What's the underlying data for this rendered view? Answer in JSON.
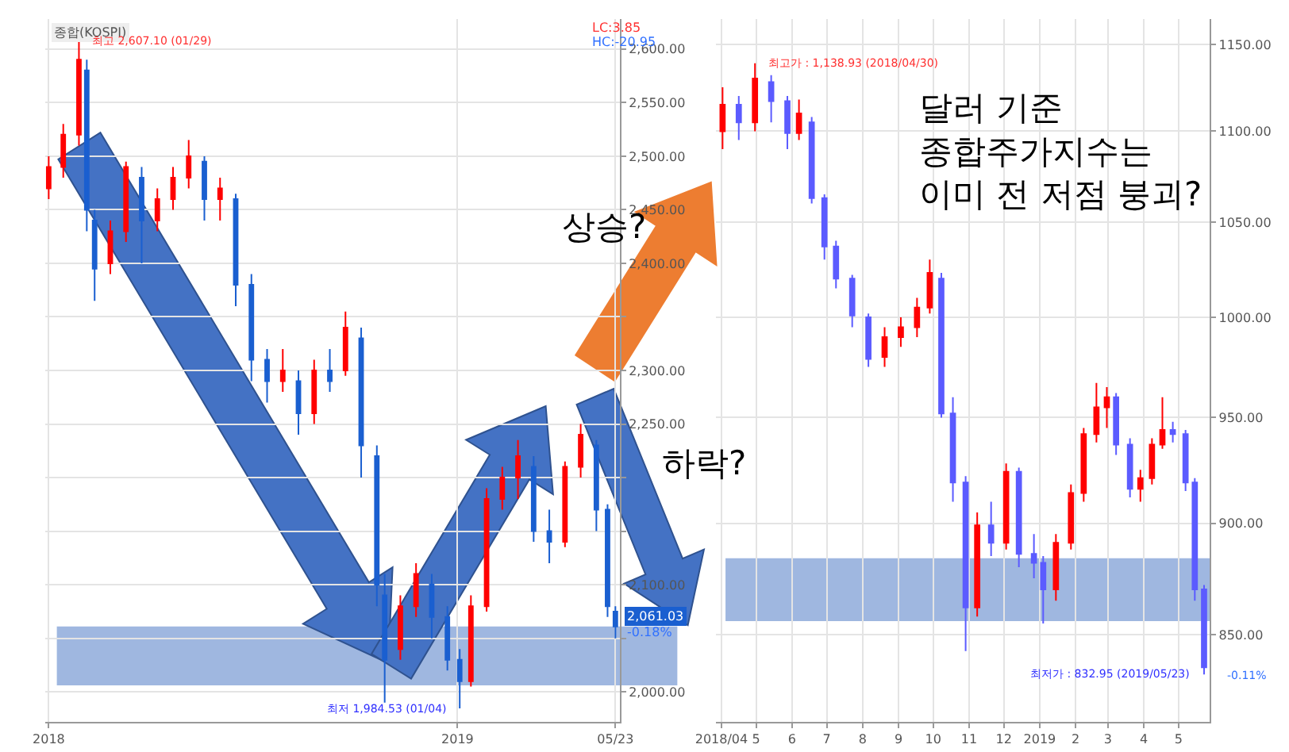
{
  "chart_data": [
    {
      "type": "candlestick",
      "title": "종합(KOSPI)",
      "log": false,
      "grid": true,
      "xlim": [
        "2017-12-30",
        "2019-05-27"
      ],
      "xticks": [
        {
          "value": "2018-01-02",
          "label": "2018"
        },
        {
          "value": "2019-01-02",
          "label": "2019"
        },
        {
          "value": "2019-05-23",
          "label": "05/23"
        }
      ],
      "ylim": [
        1972,
        2628
      ],
      "yticks": [
        {
          "value": 2000,
          "label": "2,000.00"
        },
        {
          "value": 2050,
          "label": null
        },
        {
          "value": 2100,
          "label": "2,100.00"
        },
        {
          "value": 2150,
          "label": null
        },
        {
          "value": 2200,
          "label": null
        },
        {
          "value": 2250,
          "label": "2,250.00"
        },
        {
          "value": 2300,
          "label": "2,300.00"
        },
        {
          "value": 2350,
          "label": null
        },
        {
          "value": 2400,
          "label": "2,400.00"
        },
        {
          "value": 2450,
          "label": "2,450.00"
        },
        {
          "value": 2500,
          "label": "2,500.00"
        },
        {
          "value": 2550,
          "label": "2,550.00"
        },
        {
          "value": 2600,
          "label": "2,600.00"
        }
      ],
      "series": [
        {
          "color": "#ff0000",
          "x": [
            "2018-01-02",
            "2018-01-15",
            "2018-01-29",
            "2018-02-26",
            "2018-03-12",
            "2018-04-09",
            "2018-04-23",
            "2018-05-07",
            "2018-06-04",
            "2018-07-30",
            "2018-08-27",
            "2018-09-24",
            "2018-11-12",
            "2018-11-26",
            "2019-01-14",
            "2019-01-28",
            "2019-02-11",
            "2019-02-25",
            "2019-04-08",
            "2019-04-22"
          ],
          "ohlc": [
            [
              2470,
              2500,
              2460,
              2490
            ],
            [
              2490,
              2530,
              2480,
              2520
            ],
            [
              2520,
              2607.1,
              2510,
              2590
            ],
            [
              2400,
              2440,
              2390,
              2430
            ],
            [
              2430,
              2495,
              2420,
              2490
            ],
            [
              2440,
              2470,
              2430,
              2460
            ],
            [
              2460,
              2490,
              2450,
              2480
            ],
            [
              2480,
              2515,
              2470,
              2500
            ],
            [
              2460,
              2480,
              2440,
              2470
            ],
            [
              2290,
              2320,
              2280,
              2300
            ],
            [
              2260,
              2310,
              2250,
              2300
            ],
            [
              2300,
              2355,
              2295,
              2340
            ],
            [
              2040,
              2090,
              2030,
              2080
            ],
            [
              2080,
              2120,
              2070,
              2110
            ],
            [
              2010,
              2090,
              2005,
              2080
            ],
            [
              2080,
              2190,
              2075,
              2180
            ],
            [
              2180,
              2210,
              2170,
              2200
            ],
            [
              2200,
              2235,
              2180,
              2220
            ],
            [
              2140,
              2215,
              2135,
              2210
            ],
            [
              2210,
              2250,
              2200,
              2240
            ]
          ]
        },
        {
          "color": "#1a5fd0",
          "x": [
            "2018-02-05",
            "2018-02-12",
            "2018-03-26",
            "2018-05-21",
            "2018-06-18",
            "2018-07-02",
            "2018-07-16",
            "2018-08-13",
            "2018-09-10",
            "2018-10-08",
            "2018-10-22",
            "2018-10-29",
            "2018-12-10",
            "2018-12-24",
            "2019-01-04",
            "2019-03-11",
            "2019-03-25",
            "2019-05-06",
            "2019-05-16",
            "2019-05-23"
          ],
          "ohlc": [
            [
              2580,
              2590,
              2430,
              2450
            ],
            [
              2440,
              2450,
              2365,
              2395
            ],
            [
              2480,
              2490,
              2400,
              2440
            ],
            [
              2495,
              2500,
              2440,
              2460
            ],
            [
              2460,
              2465,
              2360,
              2380
            ],
            [
              2380,
              2390,
              2290,
              2310
            ],
            [
              2310,
              2320,
              2270,
              2290
            ],
            [
              2290,
              2300,
              2240,
              2260
            ],
            [
              2300,
              2320,
              2280,
              2290
            ],
            [
              2330,
              2340,
              2200,
              2230
            ],
            [
              2220,
              2230,
              2080,
              2100
            ],
            [
              2090,
              2110,
              1990,
              2030
            ],
            [
              2100,
              2110,
              2050,
              2070
            ],
            [
              2070,
              2080,
              2020,
              2030
            ],
            [
              2030,
              2040,
              1984.53,
              2010
            ],
            [
              2210,
              2220,
              2140,
              2150
            ],
            [
              2150,
              2170,
              2120,
              2140
            ],
            [
              2230,
              2235,
              2150,
              2170
            ],
            [
              2170,
              2175,
              2070,
              2080
            ],
            [
              2075,
              2080,
              2050,
              2061.03
            ]
          ]
        }
      ],
      "bands": [
        {
          "axis": "y",
          "from": 2006,
          "to": 2061,
          "color": "#8eaadb"
        }
      ],
      "annotations": [
        "LC:3.85",
        "HC:-20.95",
        "2,061.03",
        "-0.18%",
        {
          "text": "최고 2,607.10 (01/29)",
          "x": "2018-01-29",
          "y": 2607.1
        },
        {
          "text": "최저 1,984.53 (01/04)",
          "x": "2019-01-04",
          "y": 1984.53
        },
        "상승?",
        "하락?"
      ]
    },
    {
      "type": "candlestick",
      "log": "y",
      "grid": true,
      "xlim": [
        "2018-03-27",
        "2019-05-28"
      ],
      "xticks": [
        {
          "value": "2018-04-01",
          "label": "2018/04"
        },
        {
          "value": "2018-05-01",
          "label": "5"
        },
        {
          "value": "2018-06-01",
          "label": "6"
        },
        {
          "value": "2018-07-01",
          "label": "7"
        },
        {
          "value": "2018-08-01",
          "label": "8"
        },
        {
          "value": "2018-09-01",
          "label": "9"
        },
        {
          "value": "2018-10-01",
          "label": "10"
        },
        {
          "value": "2018-11-01",
          "label": "11"
        },
        {
          "value": "2018-12-01",
          "label": "12"
        },
        {
          "value": "2019-01-01",
          "label": "2019"
        },
        {
          "value": "2019-02-01",
          "label": "2"
        },
        {
          "value": "2019-03-01",
          "label": "3"
        },
        {
          "value": "2019-04-01",
          "label": "4"
        },
        {
          "value": "2019-05-01",
          "label": "5"
        }
      ],
      "ylim": [
        813,
        1165
      ],
      "yticks": [
        {
          "value": 850,
          "label": "850.00"
        },
        {
          "value": 900,
          "label": "900.00"
        },
        {
          "value": 950,
          "label": "950.00"
        },
        {
          "value": 1000,
          "label": "1000.00"
        },
        {
          "value": 1050,
          "label": "1050.00"
        },
        {
          "value": 1100,
          "label": "1100.00"
        },
        {
          "value": 1150,
          "label": "1150.00"
        }
      ],
      "series": [
        {
          "color": "#ff0000",
          "x": [
            "2018-04-02",
            "2018-04-30",
            "2018-06-07",
            "2018-08-20",
            "2018-09-03",
            "2018-09-17",
            "2018-09-28",
            "2018-11-08",
            "2018-12-03",
            "2019-01-15",
            "2019-01-28",
            "2019-02-08",
            "2019-02-19",
            "2019-02-28",
            "2019-03-29",
            "2019-04-08",
            "2019-04-17"
          ],
          "ohlc": [
            [
              1100,
              1125,
              1090,
              1115
            ],
            [
              1105,
              1138.93,
              1100,
              1130
            ],
            [
              1099,
              1118,
              1095,
              1110
            ],
            [
              980,
              995,
              975,
              990
            ],
            [
              990,
              1000,
              985,
              995
            ],
            [
              995,
              1010,
              990,
              1005
            ],
            [
              1005,
              1030,
              1002,
              1023
            ],
            [
              862,
              905,
              858,
              899
            ],
            [
              891,
              928,
              888,
              924
            ],
            [
              870,
              895,
              865,
              891
            ],
            [
              891,
              918,
              888,
              914
            ],
            [
              914,
              945,
              910,
              942
            ],
            [
              942,
              967,
              938,
              955
            ],
            [
              955,
              965,
              945,
              960
            ],
            [
              916,
              925,
              910,
              921
            ],
            [
              921,
              940,
              918,
              937
            ],
            [
              937,
              960,
              935,
              944
            ]
          ]
        },
        {
          "color": "#5b5bff",
          "x": [
            "2018-04-16",
            "2018-05-14",
            "2018-05-28",
            "2018-06-18",
            "2018-06-29",
            "2018-07-09",
            "2018-07-23",
            "2018-08-06",
            "2018-10-08",
            "2018-10-18",
            "2018-10-29",
            "2018-11-20",
            "2018-12-14",
            "2018-12-27",
            "2019-01-04",
            "2019-03-08",
            "2019-03-20",
            "2019-04-26",
            "2019-05-07",
            "2019-05-15",
            "2019-05-23"
          ],
          "ohlc": [
            [
              1115,
              1120,
              1095,
              1105
            ],
            [
              1128,
              1132,
              1105,
              1117
            ],
            [
              1117,
              1120,
              1090,
              1099
            ],
            [
              1105,
              1108,
              1060,
              1063
            ],
            [
              1063,
              1065,
              1030,
              1037
            ],
            [
              1037,
              1040,
              1015,
              1020
            ],
            [
              1020,
              1022,
              995,
              1001
            ],
            [
              1000,
              1002,
              975,
              979
            ],
            [
              1020,
              1023,
              950,
              952
            ],
            [
              952,
              960,
              910,
              919
            ],
            [
              919,
              922,
              843,
              862
            ],
            [
              899,
              910,
              885,
              891
            ],
            [
              924,
              926,
              880,
              886
            ],
            [
              886,
              895,
              875,
              882
            ],
            [
              882,
              885,
              855,
              870
            ],
            [
              960,
              962,
              932,
              937
            ],
            [
              937,
              940,
              912,
              916
            ],
            [
              944,
              948,
              938,
              942
            ],
            [
              942,
              944,
              915,
              919
            ],
            [
              919,
              921,
              865,
              870
            ],
            [
              870,
              872,
              832.95,
              836
            ]
          ]
        }
      ],
      "bands": [
        {
          "axis": "y",
          "from": 856,
          "to": 884,
          "color": "#8eaadb"
        }
      ],
      "annotations": [
        "달러 기준\n종합주가지수는\n이미 전 저점 붕괴?",
        {
          "text": "최고가 : 1,138.93 (2018/04/30)",
          "x": "2018-04-30",
          "y": 1138.93
        },
        {
          "text": "최저가 : 832.95 (2019/05/23)",
          "x": "2019-05-23",
          "y": 832.95
        },
        "-0.11%"
      ]
    }
  ]
}
